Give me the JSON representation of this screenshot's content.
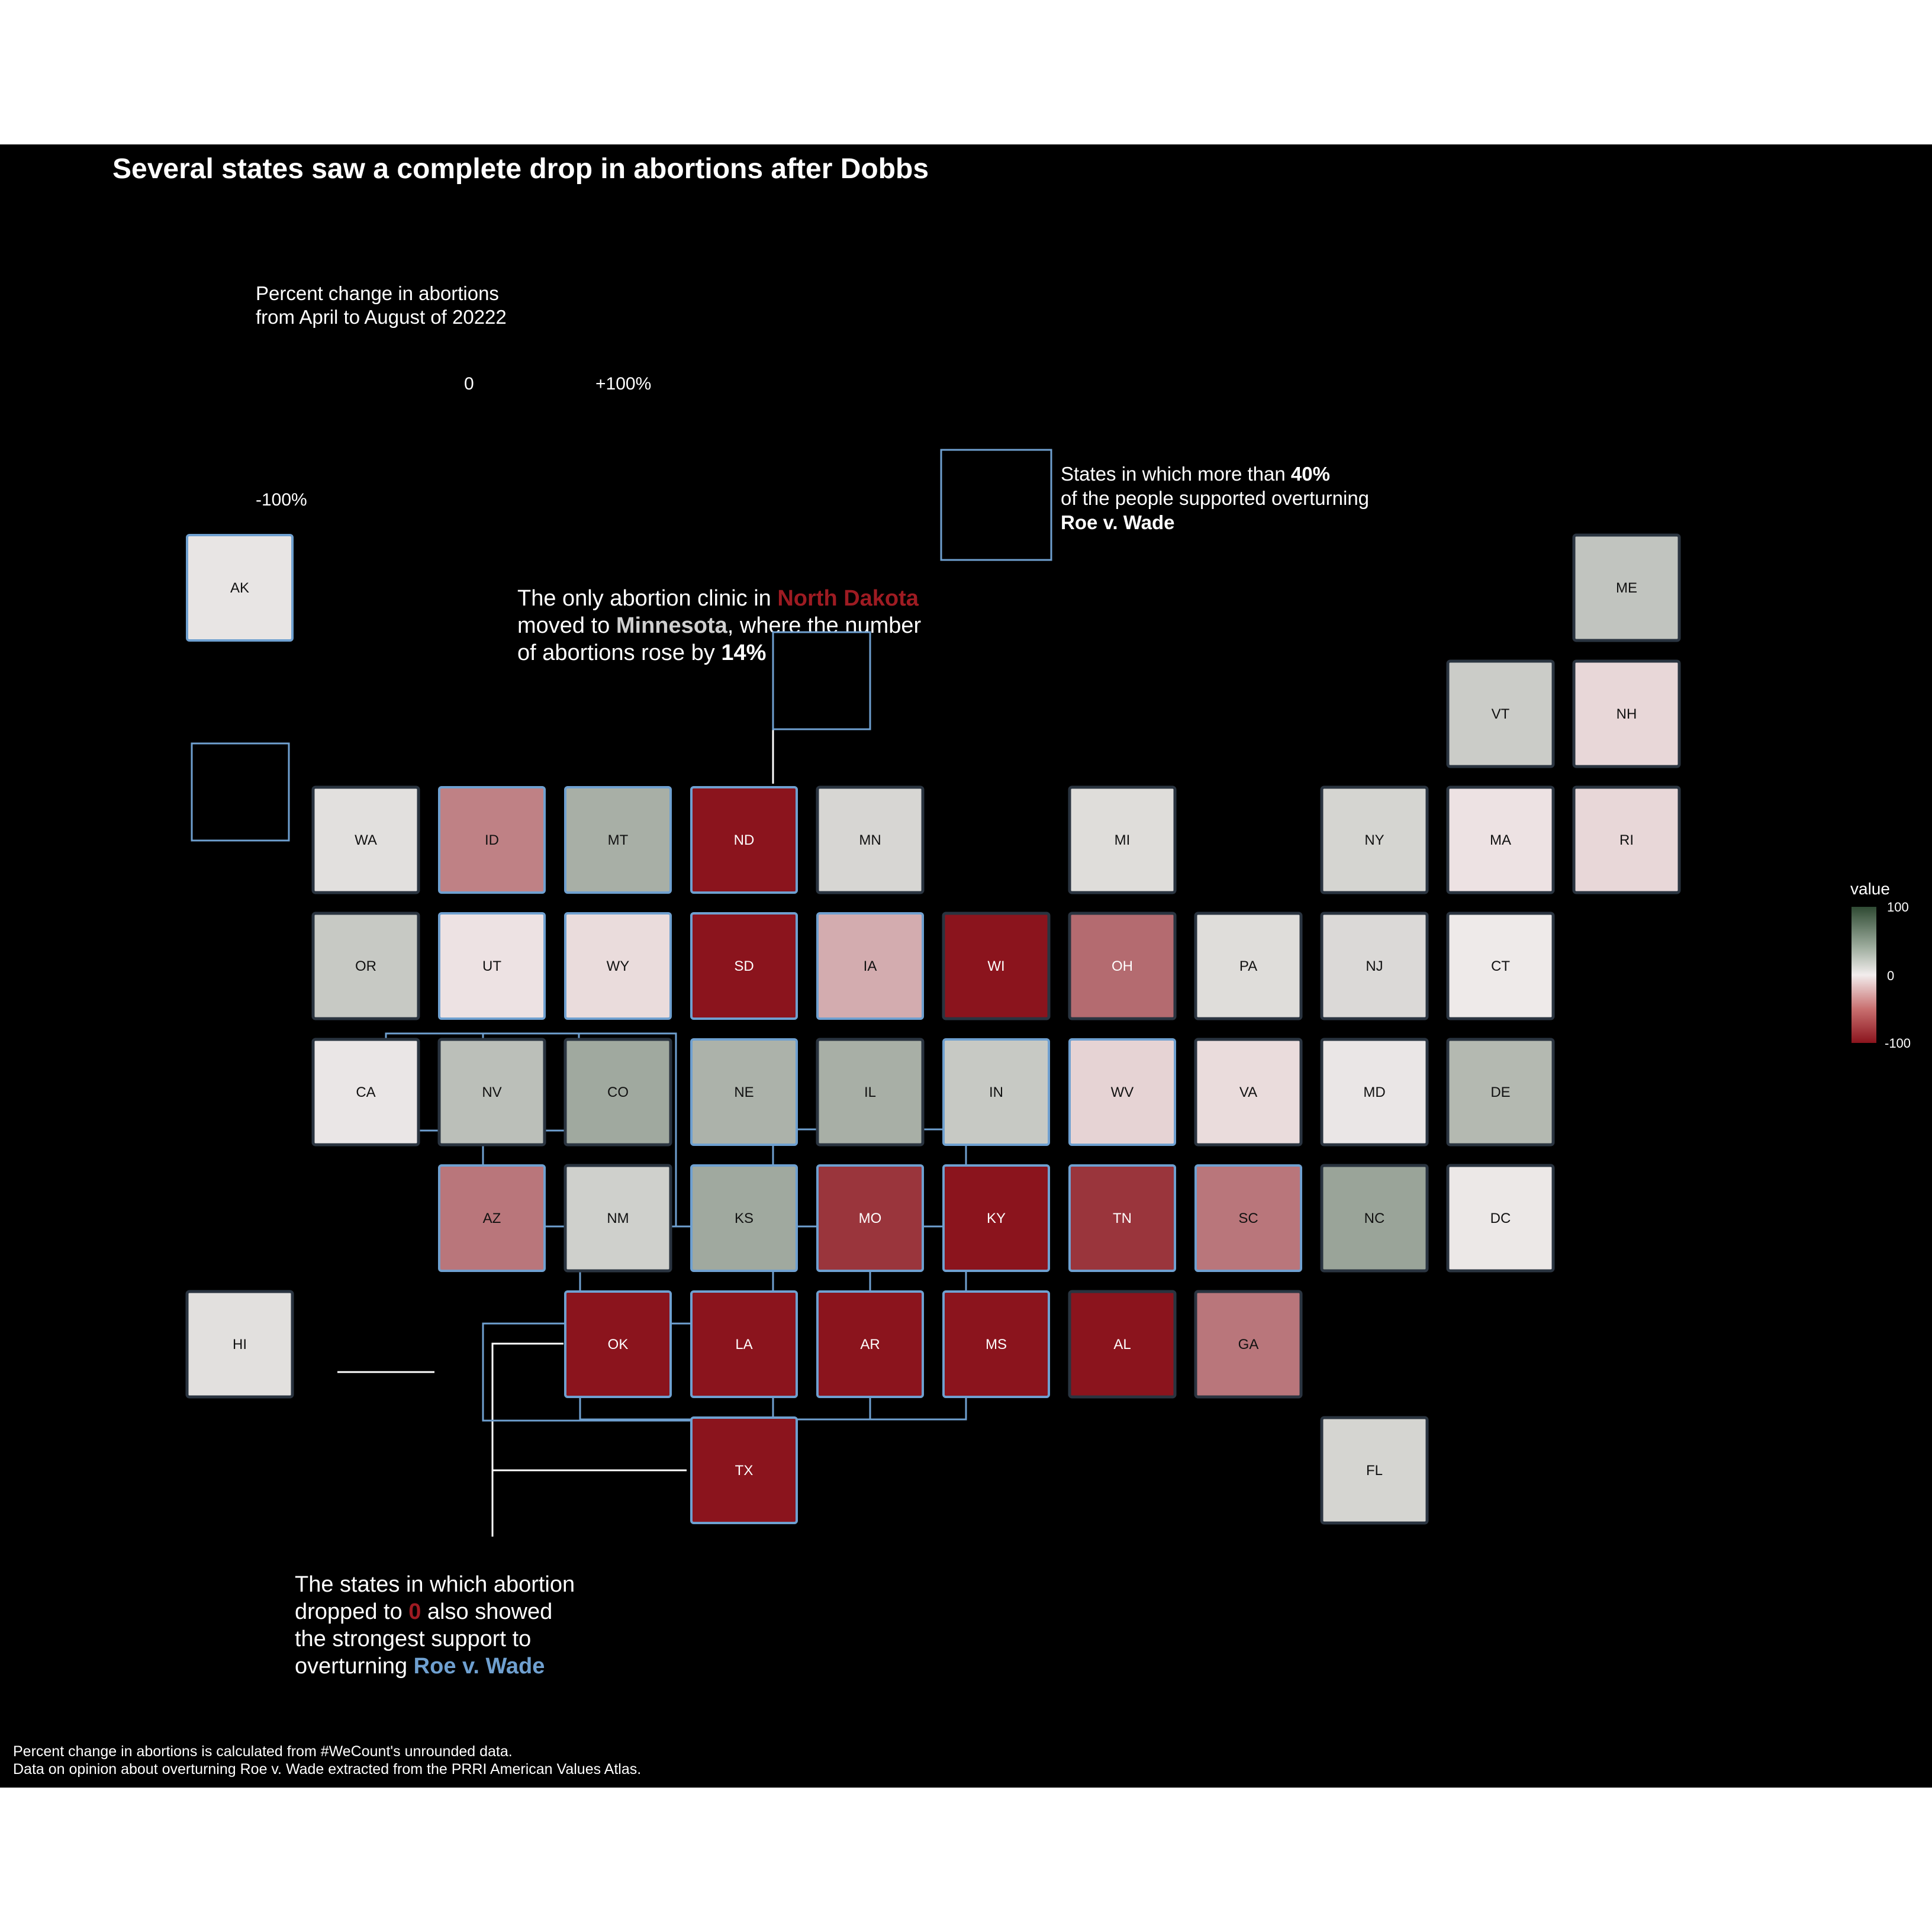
{
  "title": "Several states saw a complete drop in abortions after Dobbs",
  "legend": {
    "title_line1": "Percent change in abortions",
    "title_line2": "from April to August of 20222",
    "zero": "0",
    "max": "+100%",
    "min": "-100%"
  },
  "roe_note": {
    "line1_pre": "States in which more than ",
    "line1_bold": "40%",
    "line2": "of the people supported overturning",
    "line3": "Roe v. Wade"
  },
  "nd_note": {
    "l1_pre": "The only abortion clinic in ",
    "l1_red": "North Dakota",
    "l2_pre": "moved to ",
    "l2_bold": "Minnesota",
    "l2_post": ", where the number",
    "l3_pre": "of abortions rose by ",
    "l3_bold": "14%"
  },
  "zero_note": {
    "l1": "The states in which abortion",
    "l2_pre": "dropped to ",
    "l2_red": "0",
    "l2_post": " also showed",
    "l3": "the strongest support to",
    "l4_pre": "overturning ",
    "l4_blue": "Roe v. Wade"
  },
  "caption": {
    "line1": "Percent change in abortions is calculated from #WeCount's unrounded data.",
    "line2": "Data on opinion about overturning Roe v. Wade extracted from the PRRI American Values Atlas."
  },
  "colorbar": {
    "title": "value",
    "max": "100",
    "mid": "0",
    "min": "-100"
  },
  "colors": {
    "background": "#000000",
    "high": "#2f4a33",
    "mid": "#f2eded",
    "low": "#8b141d",
    "support_outline": "#6fa0d0",
    "accent_red": "#9e1b22"
  },
  "chart_data": {
    "type": "heatmap",
    "title": "Several states saw a complete drop in abortions after Dobbs",
    "value_range": [
      -100,
      100
    ],
    "states": [
      {
        "abbr": "AK",
        "col": 0,
        "row": 0,
        "value": 5,
        "support40": true
      },
      {
        "abbr": "ME",
        "col": 11,
        "row": 0,
        "value": 25,
        "support40": false
      },
      {
        "abbr": "VT",
        "col": 10,
        "row": 1,
        "value": 20,
        "support40": false
      },
      {
        "abbr": "NH",
        "col": 11,
        "row": 1,
        "value": -10,
        "support40": false
      },
      {
        "abbr": "WA",
        "col": 1,
        "row": 2,
        "value": 8,
        "support40": false
      },
      {
        "abbr": "ID",
        "col": 2,
        "row": 2,
        "value": -50,
        "support40": true
      },
      {
        "abbr": "MT",
        "col": 3,
        "row": 2,
        "value": 38,
        "support40": true
      },
      {
        "abbr": "ND",
        "col": 4,
        "row": 2,
        "value": -100,
        "support40": true
      },
      {
        "abbr": "MN",
        "col": 5,
        "row": 2,
        "value": 14,
        "support40": false
      },
      {
        "abbr": "MI",
        "col": 7,
        "row": 2,
        "value": 10,
        "support40": false
      },
      {
        "abbr": "NY",
        "col": 9,
        "row": 2,
        "value": 15,
        "support40": false
      },
      {
        "abbr": "MA",
        "col": 10,
        "row": 2,
        "value": -5,
        "support40": false
      },
      {
        "abbr": "RI",
        "col": 11,
        "row": 2,
        "value": -10,
        "support40": false
      },
      {
        "abbr": "OR",
        "col": 1,
        "row": 3,
        "value": 22,
        "support40": false
      },
      {
        "abbr": "UT",
        "col": 2,
        "row": 3,
        "value": -5,
        "support40": true
      },
      {
        "abbr": "WY",
        "col": 3,
        "row": 3,
        "value": -8,
        "support40": true
      },
      {
        "abbr": "SD",
        "col": 4,
        "row": 3,
        "value": -100,
        "support40": true
      },
      {
        "abbr": "IA",
        "col": 5,
        "row": 3,
        "value": -30,
        "support40": true
      },
      {
        "abbr": "WI",
        "col": 6,
        "row": 3,
        "value": -100,
        "support40": false
      },
      {
        "abbr": "OH",
        "col": 7,
        "row": 3,
        "value": -60,
        "support40": false
      },
      {
        "abbr": "PA",
        "col": 8,
        "row": 3,
        "value": 10,
        "support40": false
      },
      {
        "abbr": "NJ",
        "col": 9,
        "row": 3,
        "value": 12,
        "support40": false
      },
      {
        "abbr": "CT",
        "col": 10,
        "row": 3,
        "value": 2,
        "support40": false
      },
      {
        "abbr": "CA",
        "col": 1,
        "row": 4,
        "value": 4,
        "support40": false
      },
      {
        "abbr": "NV",
        "col": 2,
        "row": 4,
        "value": 28,
        "support40": false
      },
      {
        "abbr": "CO",
        "col": 3,
        "row": 4,
        "value": 42,
        "support40": false
      },
      {
        "abbr": "NE",
        "col": 4,
        "row": 4,
        "value": 36,
        "support40": true
      },
      {
        "abbr": "IL",
        "col": 5,
        "row": 4,
        "value": 38,
        "support40": false
      },
      {
        "abbr": "IN",
        "col": 6,
        "row": 4,
        "value": 22,
        "support40": true
      },
      {
        "abbr": "WV",
        "col": 7,
        "row": 4,
        "value": -12,
        "support40": true
      },
      {
        "abbr": "VA",
        "col": 8,
        "row": 4,
        "value": -8,
        "support40": false
      },
      {
        "abbr": "MD",
        "col": 9,
        "row": 4,
        "value": 4,
        "support40": false
      },
      {
        "abbr": "DE",
        "col": 10,
        "row": 4,
        "value": 32,
        "support40": false
      },
      {
        "abbr": "AZ",
        "col": 2,
        "row": 5,
        "value": -55,
        "support40": true
      },
      {
        "abbr": "NM",
        "col": 3,
        "row": 5,
        "value": 18,
        "support40": false
      },
      {
        "abbr": "KS",
        "col": 4,
        "row": 5,
        "value": 42,
        "support40": true
      },
      {
        "abbr": "MO",
        "col": 5,
        "row": 5,
        "value": -85,
        "support40": true
      },
      {
        "abbr": "KY",
        "col": 6,
        "row": 5,
        "value": -100,
        "support40": true
      },
      {
        "abbr": "TN",
        "col": 7,
        "row": 5,
        "value": -85,
        "support40": true
      },
      {
        "abbr": "SC",
        "col": 8,
        "row": 5,
        "value": -55,
        "support40": true
      },
      {
        "abbr": "NC",
        "col": 9,
        "row": 5,
        "value": 45,
        "support40": false
      },
      {
        "abbr": "DC",
        "col": 10,
        "row": 5,
        "value": 3,
        "support40": false
      },
      {
        "abbr": "HI",
        "col": 0,
        "row": 6,
        "value": 8,
        "support40": false
      },
      {
        "abbr": "OK",
        "col": 3,
        "row": 6,
        "value": -100,
        "support40": true
      },
      {
        "abbr": "LA",
        "col": 4,
        "row": 6,
        "value": -100,
        "support40": true
      },
      {
        "abbr": "AR",
        "col": 5,
        "row": 6,
        "value": -100,
        "support40": true
      },
      {
        "abbr": "MS",
        "col": 6,
        "row": 6,
        "value": -100,
        "support40": true
      },
      {
        "abbr": "AL",
        "col": 7,
        "row": 6,
        "value": -100,
        "support40": false
      },
      {
        "abbr": "GA",
        "col": 8,
        "row": 6,
        "value": -55,
        "support40": false
      },
      {
        "abbr": "TX",
        "col": 4,
        "row": 7,
        "value": -100,
        "support40": true
      },
      {
        "abbr": "FL",
        "col": 9,
        "row": 7,
        "value": 15,
        "support40": false
      }
    ]
  }
}
